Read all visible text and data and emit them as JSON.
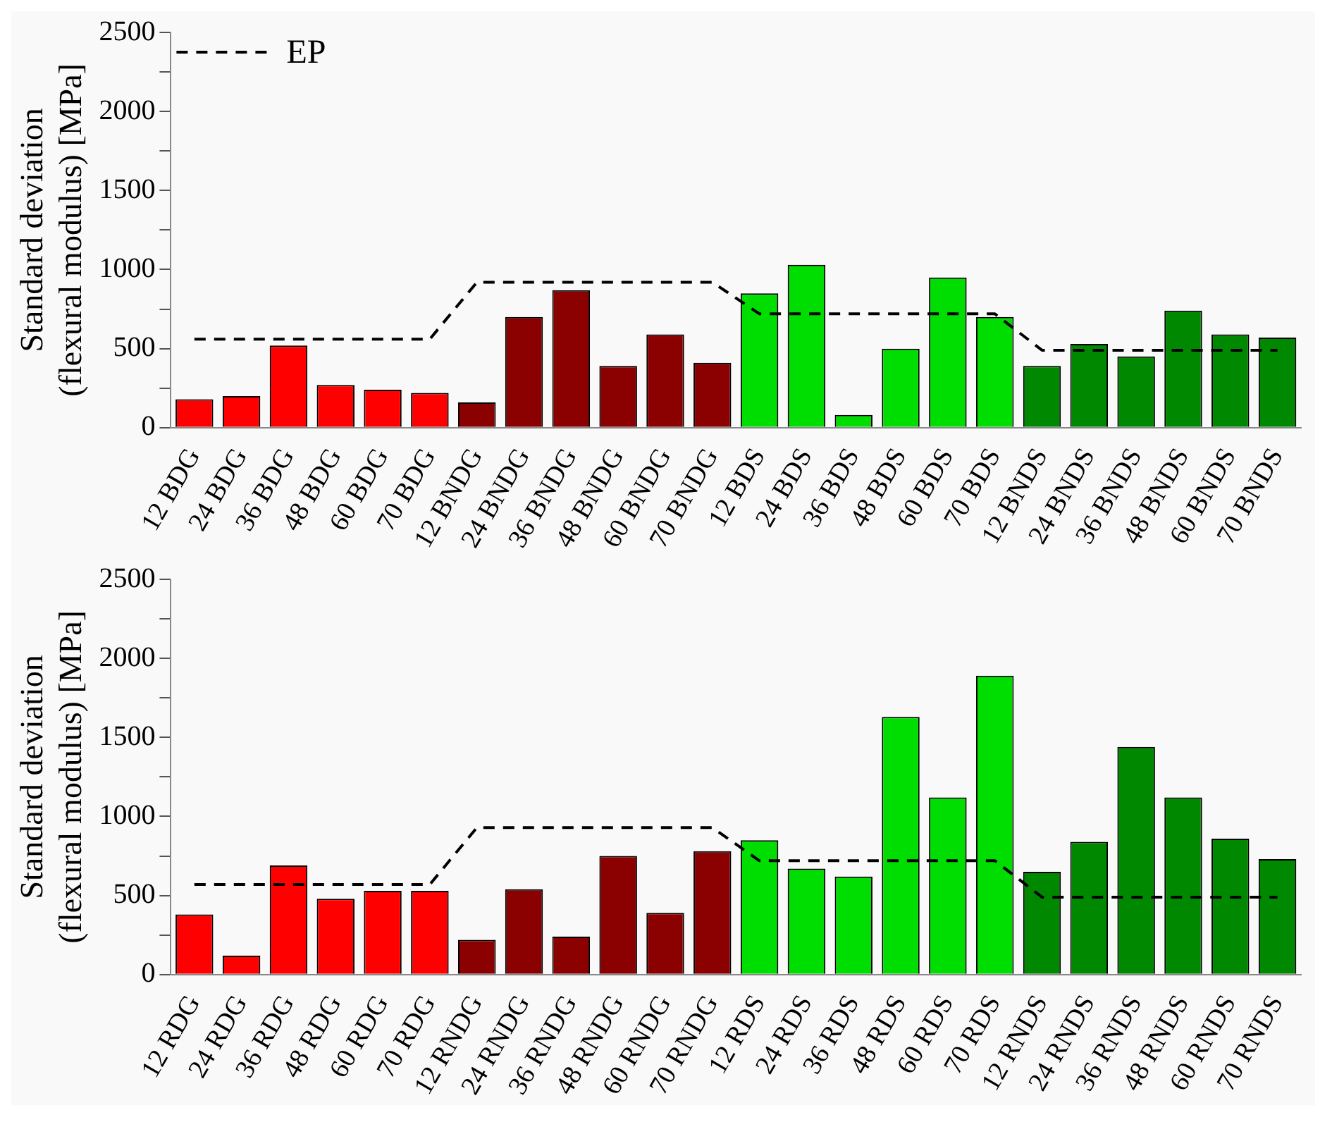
{
  "chart_data": [
    {
      "type": "bar",
      "ylabel": "Standard deviation\n(flexural modulus) [MPa]",
      "categories": [
        "12 BDG",
        "24 BDG",
        "36 BDG",
        "48 BDG",
        "60 BDG",
        "70 BDG",
        "12 BNDG",
        "24 BNDG",
        "36 BNDG",
        "48 BNDG",
        "60 BNDG",
        "70 BNDG",
        "12 BDS",
        "24 BDS",
        "36 BDS",
        "48 BDS",
        "60 BDS",
        "70 BDS",
        "12 BNDS",
        "24 BNDS",
        "36 BNDS",
        "48 BNDS",
        "60 BNDS",
        "70 BNDS"
      ],
      "series": [
        {
          "colors": [
            "#ff0000",
            "#ff0000",
            "#ff0000",
            "#ff0000",
            "#ff0000",
            "#ff0000",
            "#8b0000",
            "#8b0000",
            "#8b0000",
            "#8b0000",
            "#8b0000",
            "#8b0000",
            "#00dd00",
            "#00dd00",
            "#00dd00",
            "#00dd00",
            "#00dd00",
            "#00dd00",
            "#008800",
            "#008800",
            "#008800",
            "#008800",
            "#008800",
            "#008800"
          ],
          "values": [
            180,
            200,
            520,
            270,
            240,
            220,
            160,
            700,
            870,
            390,
            590,
            410,
            850,
            1030,
            80,
            500,
            950,
            700,
            390,
            530,
            450,
            740,
            590,
            570
          ]
        },
        {
          "type": "line",
          "name": "EP",
          "color": "#000000",
          "line_style": "dashed",
          "marker": "none",
          "values": [
            560,
            560,
            560,
            560,
            560,
            560,
            920,
            920,
            920,
            920,
            920,
            920,
            720,
            720,
            720,
            720,
            720,
            720,
            490,
            490,
            490,
            490,
            490,
            490
          ]
        }
      ],
      "ylim": [
        0,
        2500
      ],
      "yticks": [
        0,
        {
          "value": 250,
          "label": null
        },
        500,
        {
          "value": 750,
          "label": null
        },
        1000,
        {
          "value": 1250,
          "label": null
        },
        1500,
        {
          "value": 1750,
          "label": null
        },
        2000,
        {
          "value": 2250,
          "label": null
        },
        2500
      ],
      "grid": false,
      "legend": "top left"
    },
    {
      "type": "bar",
      "ylabel": "Standard deviation\n(flexural modulus) [MPa]",
      "categories": [
        "12 RDG",
        "24 RDG",
        "36 RDG",
        "48 RDG",
        "60 RDG",
        "70 RDG",
        "12 RNDG",
        "24 RNDG",
        "36 RNDG",
        "48 RNDG",
        "60 RNDG",
        "70 RNDG",
        "12 RDS",
        "24 RDS",
        "36 RDS",
        "48 RDS",
        "60 RDS",
        "70 RDS",
        "12 RNDS",
        "24 RNDS",
        "36 RNDS",
        "48 RNDS",
        "60 RNDS",
        "70 RNDS"
      ],
      "series": [
        {
          "colors": [
            "#ff0000",
            "#ff0000",
            "#ff0000",
            "#ff0000",
            "#ff0000",
            "#ff0000",
            "#8b0000",
            "#8b0000",
            "#8b0000",
            "#8b0000",
            "#8b0000",
            "#8b0000",
            "#00dd00",
            "#00dd00",
            "#00dd00",
            "#00dd00",
            "#00dd00",
            "#00dd00",
            "#008800",
            "#008800",
            "#008800",
            "#008800",
            "#008800",
            "#008800"
          ],
          "values": [
            380,
            120,
            690,
            480,
            530,
            530,
            220,
            540,
            240,
            750,
            390,
            780,
            850,
            670,
            620,
            1630,
            1120,
            1890,
            650,
            840,
            1440,
            1120,
            860,
            730
          ]
        },
        {
          "type": "line",
          "color": "#000000",
          "line_style": "dashed",
          "marker": "none",
          "values": [
            570,
            570,
            570,
            570,
            570,
            570,
            930,
            930,
            930,
            930,
            930,
            930,
            720,
            720,
            720,
            720,
            720,
            720,
            490,
            490,
            490,
            490,
            490,
            490
          ]
        }
      ],
      "ylim": [
        0,
        2500
      ],
      "yticks": [
        0,
        {
          "value": 250,
          "label": null
        },
        500,
        {
          "value": 750,
          "label": null
        },
        1000,
        {
          "value": 1250,
          "label": null
        },
        1500,
        {
          "value": 1750,
          "label": null
        },
        2000,
        {
          "value": 2250,
          "label": null
        },
        2500
      ],
      "grid": false,
      "legend": false
    }
  ]
}
